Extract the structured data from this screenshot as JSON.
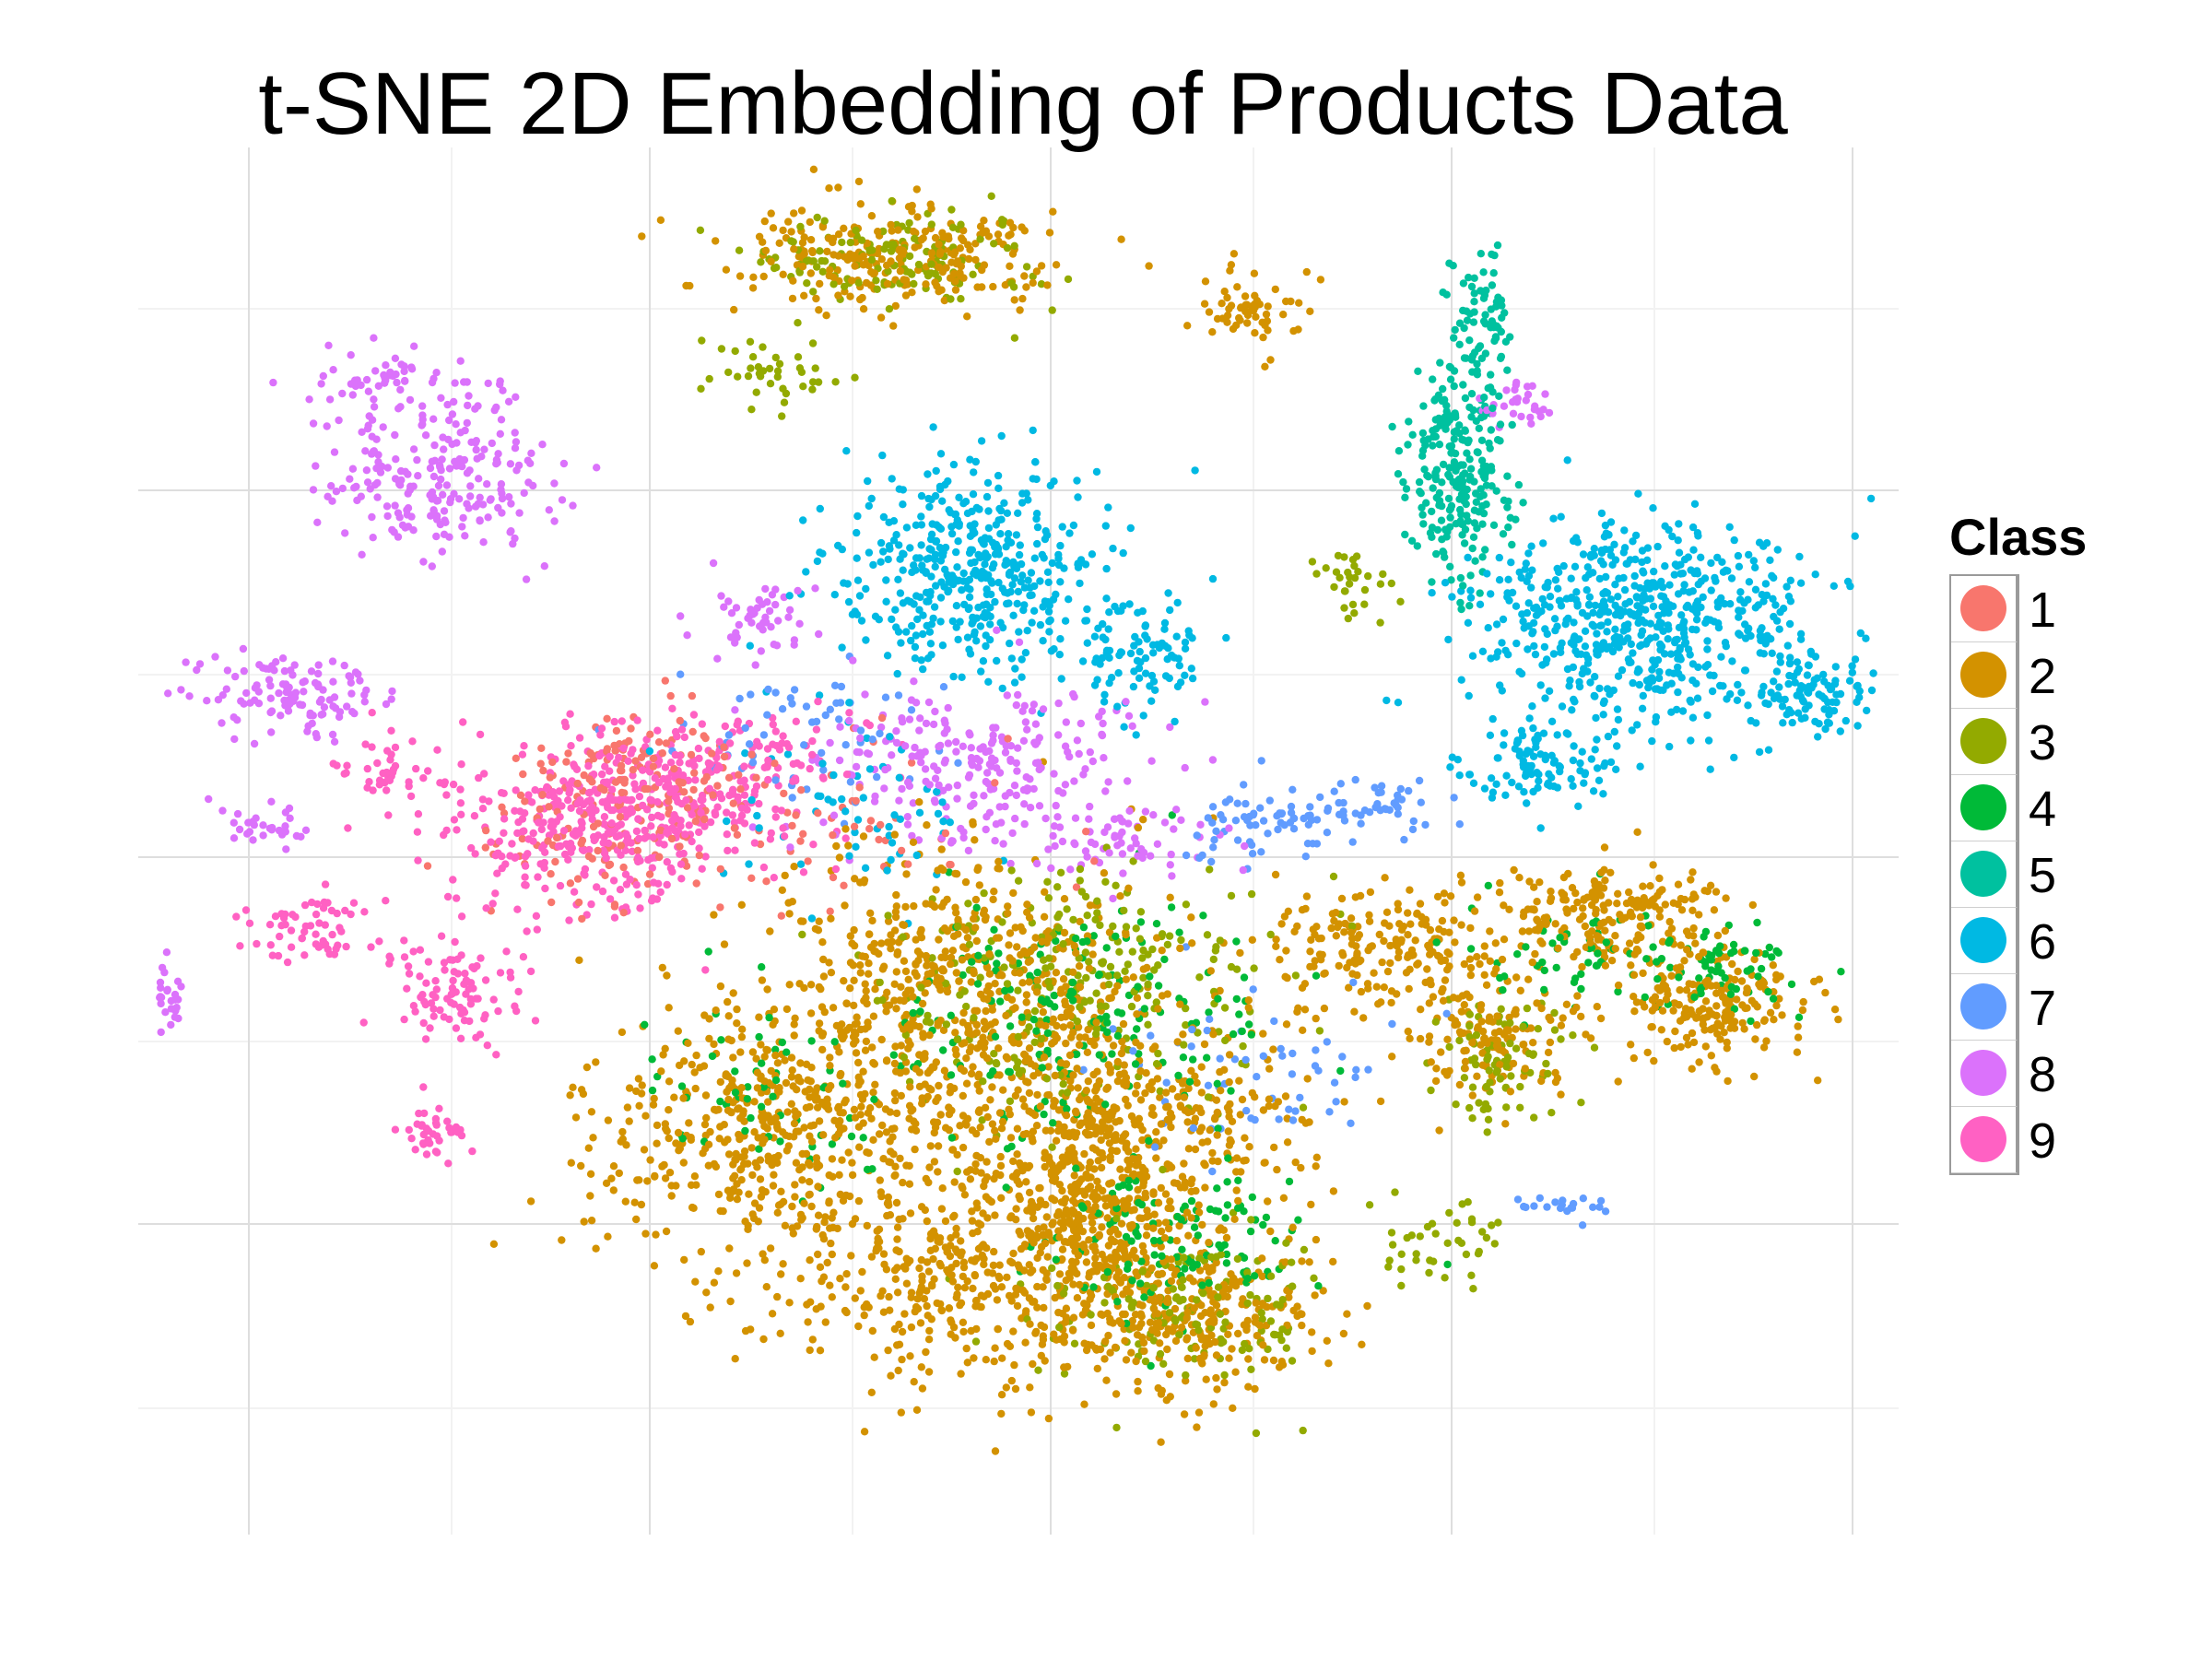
{
  "chart_data": {
    "type": "scatter",
    "title": "t-SNE 2D Embedding of Products Data",
    "xlabel": "",
    "ylabel": "",
    "xlim": [
      -42,
      42
    ],
    "ylim": [
      -38,
      38
    ],
    "grid": true,
    "axis_ticks_labeled": false,
    "legend": {
      "title": "Class",
      "placement": "right"
    },
    "series": [
      {
        "name": "1",
        "color": "#F8766D",
        "clusters": [
          [
            -18,
            4,
            5,
            3,
            120
          ],
          [
            -20,
            0,
            6,
            3,
            80
          ],
          [
            -8,
            1,
            8,
            4,
            60
          ]
        ]
      },
      {
        "name": "2",
        "color": "#D39200",
        "clusters": [
          [
            -6,
            32,
            7,
            2.5,
            260
          ],
          [
            11,
            29,
            2,
            2,
            60
          ],
          [
            -3,
            -8,
            9,
            7,
            600
          ],
          [
            -12,
            -16,
            8,
            6,
            500
          ],
          [
            5,
            -16,
            8,
            6,
            500
          ],
          [
            -2,
            -24,
            8,
            5,
            450
          ],
          [
            8,
            -26,
            6,
            4,
            300
          ],
          [
            18,
            -6,
            6,
            3,
            220
          ],
          [
            28,
            -4,
            5,
            2.5,
            200
          ],
          [
            33,
            -9,
            4,
            3,
            200
          ],
          [
            23,
            -11,
            3,
            3,
            120
          ],
          [
            3,
            -20,
            4,
            4,
            180
          ]
        ]
      },
      {
        "name": "3",
        "color": "#93AA00",
        "clusters": [
          [
            -6,
            32,
            7,
            2.5,
            140
          ],
          [
            -12,
            26,
            3,
            2,
            40
          ],
          [
            3,
            -8,
            8,
            6,
            250
          ],
          [
            8,
            -26,
            6,
            4,
            150
          ],
          [
            23,
            -12,
            3,
            3,
            80
          ],
          [
            20,
            -22,
            3,
            2,
            40
          ],
          [
            16,
            14,
            2,
            2,
            30
          ]
        ]
      },
      {
        "name": "4",
        "color": "#00BA38",
        "clusters": [
          [
            3,
            -10,
            8,
            6,
            180
          ],
          [
            8,
            -22,
            6,
            4,
            120
          ],
          [
            27,
            -6,
            5,
            2.5,
            60
          ],
          [
            34,
            -7,
            3,
            2,
            60
          ],
          [
            -12,
            -14,
            6,
            5,
            60
          ]
        ]
      },
      {
        "name": "5",
        "color": "#00C19F",
        "clusters": [
          [
            21,
            20,
            2,
            5,
            240
          ],
          [
            22,
            28,
            1.5,
            4,
            80
          ]
        ]
      },
      {
        "name": "6",
        "color": "#00B9E3",
        "clusters": [
          [
            -2,
            15,
            6,
            5,
            450
          ],
          [
            6,
            10,
            3,
            3,
            80
          ],
          [
            30,
            12,
            7,
            5,
            600
          ],
          [
            25,
            4,
            3,
            2,
            100
          ],
          [
            38,
            8,
            3,
            2,
            100
          ],
          [
            -8,
            2,
            6,
            4,
            60
          ]
        ]
      },
      {
        "name": "7",
        "color": "#619CFF",
        "clusters": [
          [
            11,
            1,
            3,
            2,
            60
          ],
          [
            17,
            2,
            3,
            1.5,
            50
          ],
          [
            -10,
            6,
            6,
            4,
            60
          ],
          [
            12,
            -12,
            6,
            4,
            60
          ],
          [
            26,
            -20,
            2,
            1,
            20
          ]
        ]
      },
      {
        "name": "8",
        "color": "#DB72FB",
        "clusters": [
          [
            -28,
            20,
            5,
            4,
            220
          ],
          [
            -35,
            8,
            4,
            2,
            120
          ],
          [
            -41,
            -9,
            1,
            2,
            50
          ],
          [
            -36,
            1,
            2,
            1,
            30
          ],
          [
            -30,
            25,
            4,
            2,
            60
          ],
          [
            -2,
            4,
            7,
            4,
            250
          ],
          [
            -12,
            12,
            3,
            2,
            50
          ],
          [
            24,
            24,
            1.5,
            1,
            30
          ],
          [
            5,
            0,
            4,
            2,
            60
          ]
        ]
      },
      {
        "name": "9",
        "color": "#FF61C3",
        "clusters": [
          [
            -20,
            1,
            7,
            4,
            400
          ],
          [
            -27,
            -8,
            3,
            3,
            100
          ],
          [
            -34,
            -5,
            3,
            2,
            60
          ],
          [
            -28,
            -16,
            2,
            1.5,
            40
          ],
          [
            -14,
            4,
            6,
            3,
            150
          ],
          [
            -30,
            4,
            2,
            2,
            40
          ]
        ]
      }
    ]
  }
}
